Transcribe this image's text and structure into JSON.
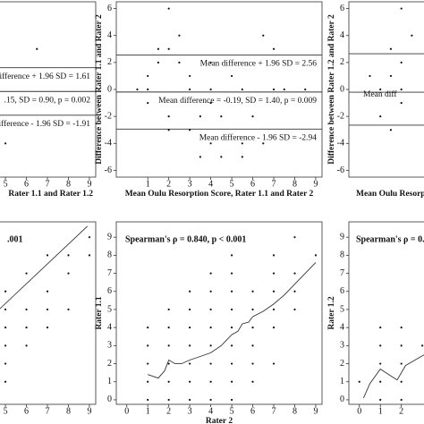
{
  "chart_data": [
    {
      "type": "scatter",
      "xlabel": "Rater 1.1 and Rater 1.2",
      "xlim": [
        -0.5,
        9.3
      ],
      "ylim": [
        -6.5,
        6.5
      ],
      "xticks": [
        5,
        6,
        7,
        8,
        9
      ],
      "points": {
        "x": [
          6.5,
          5
        ],
        "y": [
          3,
          -4
        ]
      },
      "hlines": [
        {
          "value": 1.61,
          "label": "ifference + 1.96 SD = 1.61"
        },
        {
          "value": -0.15,
          "label": ".15, SD = 0.90, p = 0.002"
        },
        {
          "value": -1.91,
          "label": "ifference - 1.96 SD = -1.91"
        }
      ]
    },
    {
      "type": "scatter",
      "xlabel": "Mean Oulu Resorption Score, Rater 1.1 and Rater 2",
      "ylabel": "Difference between Rater 1.1 and Rater 2",
      "xlim": [
        -0.5,
        9.3
      ],
      "ylim": [
        -6.5,
        6.5
      ],
      "xticks": [
        1,
        2,
        3,
        4,
        5,
        6,
        7,
        8,
        9
      ],
      "yticks": [
        -6,
        -4,
        -2,
        0,
        2,
        4,
        6
      ],
      "points": {
        "x": [
          2,
          1.5,
          2,
          2.5,
          6.5,
          7,
          1.5,
          2.5,
          4,
          1,
          3,
          5,
          0.5,
          1,
          3,
          4,
          5.5,
          7,
          7.5,
          8.5,
          1,
          4,
          2,
          3.5,
          4.5,
          6,
          2,
          3,
          4,
          5.5,
          4.5,
          3.5,
          5.5,
          6.5
        ],
        "y": [
          6,
          3,
          3,
          4,
          4,
          3,
          2,
          2,
          2,
          1,
          1,
          1,
          0,
          0,
          0,
          0,
          0,
          0,
          0,
          0,
          -1,
          -1,
          -2,
          -2,
          -2,
          -2,
          -3,
          -3,
          -4,
          -4,
          -5,
          -5,
          -5,
          -4
        ]
      },
      "hlines": [
        {
          "value": 2.56,
          "label": "Mean difference + 1.96 SD = 2.56"
        },
        {
          "value": -0.19,
          "label": "Mean difference = -0.19, SD = 1.40, p = 0.009"
        },
        {
          "value": -2.94,
          "label": "Mean difference - 1.96 SD = -2.94"
        }
      ]
    },
    {
      "type": "scatter",
      "xlabel": "Mean Oulu Resorp",
      "ylabel": "Difference between Rater 1.2 and Rater 2",
      "xlim": [
        -0.5,
        9.3
      ],
      "ylim": [
        -6.5,
        6.5
      ],
      "yticks": [
        -6,
        -4,
        -2,
        0,
        2,
        4,
        6
      ],
      "points": {
        "x": [
          2,
          1.5,
          2.5,
          2,
          1.5,
          0.5,
          1,
          2,
          1,
          1.5,
          2
        ],
        "y": [
          6,
          3,
          4,
          2,
          1,
          1,
          0,
          0,
          -2,
          -3,
          -1
        ]
      },
      "hlines": [
        {
          "value": 2.65
        },
        {
          "value": -0.2,
          "label": "Mean diff"
        },
        {
          "value": -2.65
        }
      ]
    },
    {
      "type": "scatter",
      "annotation": ".001",
      "xlim": [
        -0.5,
        9.3
      ],
      "ylim": [
        -0.25,
        9.85
      ],
      "xticks": [
        5,
        6,
        7,
        8,
        9
      ],
      "points": {
        "x": [
          5,
          5,
          5,
          5,
          5,
          5,
          6,
          6,
          6,
          6,
          7,
          7,
          7,
          7,
          8,
          8,
          8,
          9,
          9
        ],
        "y": [
          1,
          2,
          3,
          4,
          5,
          6,
          3,
          4,
          5,
          7,
          4,
          5,
          6,
          8,
          5,
          7,
          8,
          8,
          9
        ]
      },
      "curve": {
        "x": [
          4.7,
          8.9
        ],
        "y": [
          5,
          9.6
        ]
      }
    },
    {
      "type": "scatter",
      "annotation": "Spearman's ρ = 0.840, p < 0.001",
      "xlabel": "Rater 2",
      "ylabel": "Rater 1.1",
      "xlim": [
        -0.5,
        9.3
      ],
      "ylim": [
        -0.25,
        9.85
      ],
      "xticks": [
        0,
        1,
        2,
        3,
        4,
        5,
        6,
        7,
        8,
        9
      ],
      "yticks": [
        0,
        1,
        2,
        3,
        4,
        5,
        6,
        7,
        8,
        9
      ],
      "points": {
        "x": [
          1,
          2,
          3,
          4,
          5,
          1,
          2,
          3,
          4,
          5,
          6,
          1,
          2,
          3,
          4,
          5,
          6,
          7,
          1,
          2,
          3,
          4,
          5,
          6,
          1,
          2,
          3,
          4,
          5,
          6,
          7,
          2,
          3,
          4,
          5,
          6,
          7,
          8,
          3,
          4,
          5,
          6,
          7,
          8,
          4,
          5,
          7,
          8,
          5,
          7,
          9,
          8
        ],
        "y": [
          0,
          0,
          0,
          0,
          0,
          1,
          1,
          1,
          1,
          1,
          1,
          2,
          2,
          2,
          2,
          2,
          2,
          2,
          3,
          3,
          3,
          3,
          3,
          3,
          4,
          4,
          4,
          4,
          4,
          4,
          4,
          5,
          5,
          5,
          5,
          5,
          5,
          5,
          6,
          6,
          6,
          6,
          6,
          6,
          7,
          7,
          7,
          7,
          8,
          8,
          8,
          9
        ]
      },
      "curve": {
        "x": [
          1,
          1.5,
          1.8,
          2,
          2.3,
          2.6,
          3,
          3.5,
          4,
          4.5,
          5,
          5.3,
          5.5,
          5.8,
          6,
          6.5,
          7,
          7.5,
          8,
          8.5,
          9
        ],
        "y": [
          1.4,
          1.2,
          1.6,
          2.2,
          2.0,
          2.0,
          2.2,
          2.4,
          2.6,
          3.0,
          3.6,
          3.8,
          4.2,
          4.3,
          4.6,
          4.9,
          5.3,
          5.8,
          6.4,
          7.0,
          7.6
        ]
      }
    },
    {
      "type": "scatter",
      "annotation": "Spearman's ρ = 0.",
      "ylabel": "Rater 1.2",
      "xlim": [
        -0.5,
        9.3
      ],
      "ylim": [
        -0.25,
        9.85
      ],
      "xticks": [
        0,
        1,
        2
      ],
      "yticks": [
        0,
        1,
        2,
        3,
        4,
        5,
        6,
        7,
        8,
        9
      ],
      "points": {
        "x": [
          1,
          2,
          1,
          2,
          1,
          2,
          1,
          2,
          1,
          2,
          0,
          3
        ],
        "y": [
          0,
          0,
          1,
          1,
          2,
          2,
          3,
          3,
          4,
          4,
          1,
          3
        ]
      },
      "curve": {
        "x": [
          0.2,
          0.5,
          1,
          1.4,
          1.8,
          2.2,
          2.8,
          3.4
        ],
        "y": [
          0.1,
          0.9,
          1.7,
          1.4,
          1.1,
          1.9,
          2.3,
          2.7
        ]
      }
    }
  ]
}
